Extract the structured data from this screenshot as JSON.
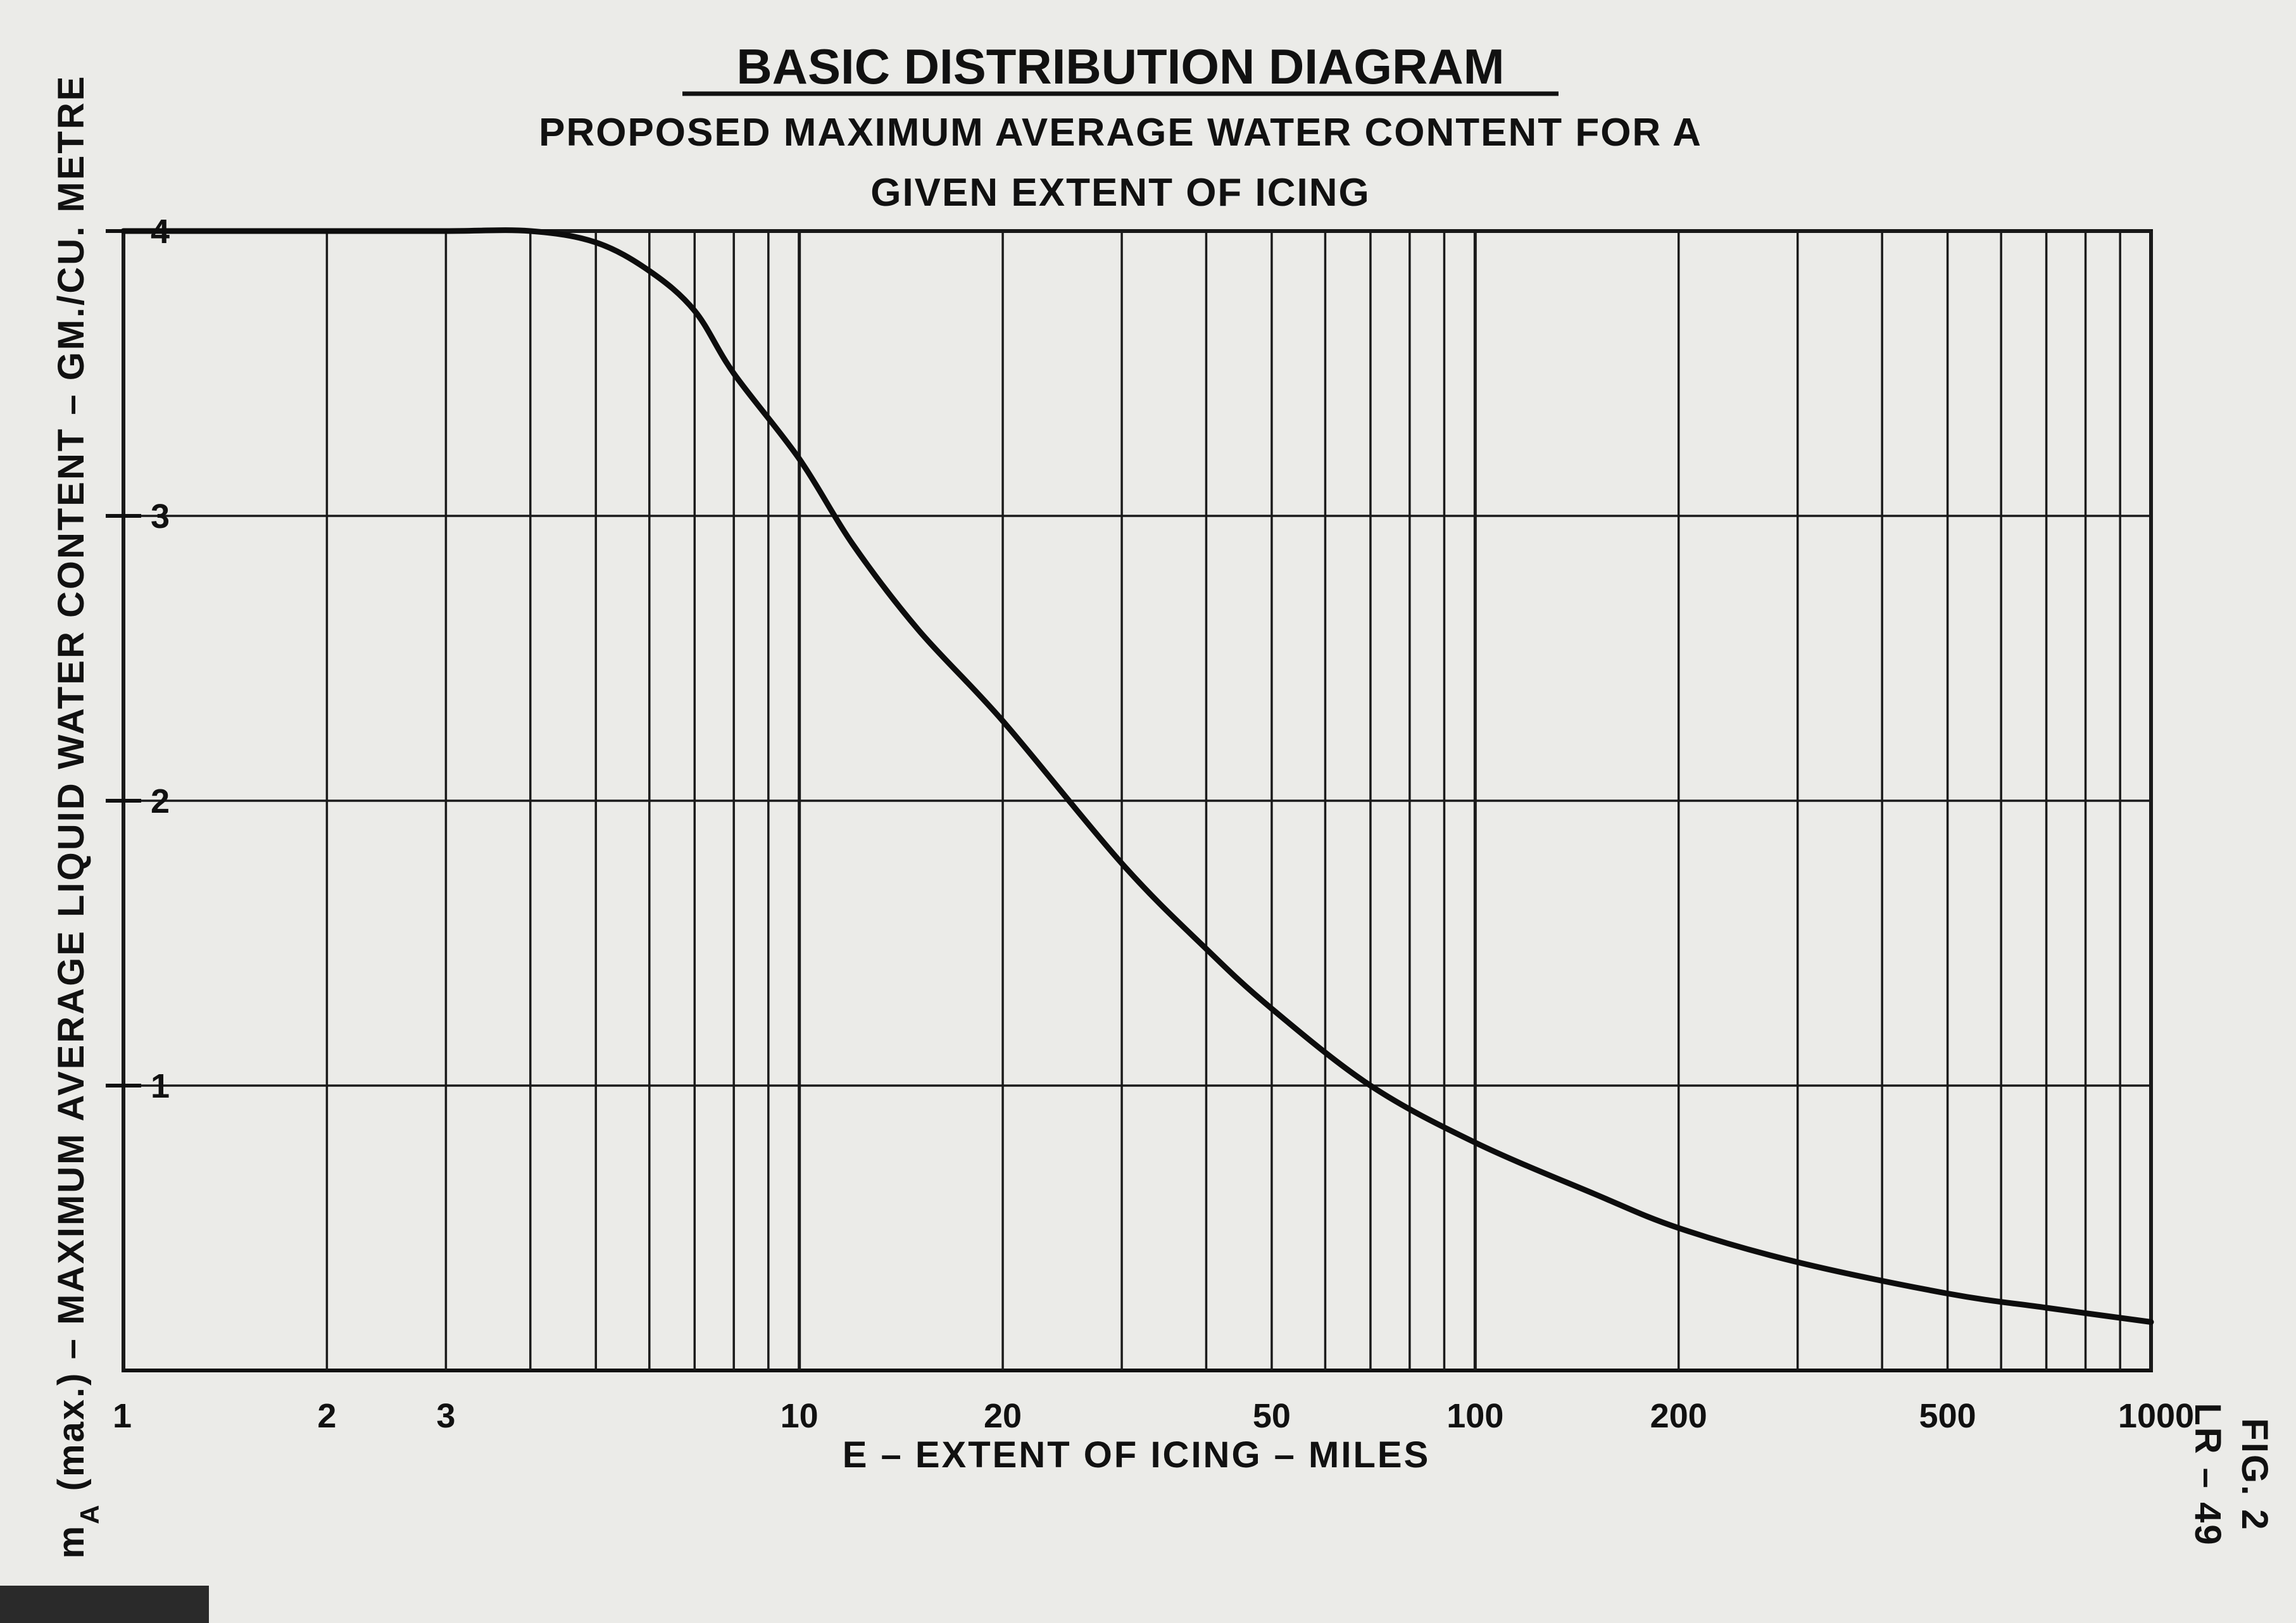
{
  "chart_data": {
    "type": "line",
    "title": "BASIC DISTRIBUTION DIAGRAM",
    "subtitle_lines": [
      "PROPOSED  MAXIMUM  AVERAGE  WATER  CONTENT  FOR  A",
      "GIVEN  EXTENT  OF  ICING"
    ],
    "xlabel": "E – EXTENT  OF  ICING – MILES",
    "ylabel": "m (max.) – MAXIMUM  AVERAGE  LIQUID  WATER  CONTENT  –  GM./CU. METRE",
    "ylabel_subscript": "A",
    "x_scale": "log",
    "xlim": [
      1,
      1000
    ],
    "ylim": [
      0,
      4
    ],
    "grid": true,
    "x_tick_labels": [
      "1",
      "2",
      "3",
      "10",
      "20",
      "50",
      "100",
      "200",
      "500",
      "1000"
    ],
    "y_tick_labels": [
      "1",
      "2",
      "3",
      "4"
    ],
    "x_gridlines": [
      1,
      2,
      3,
      4,
      5,
      6,
      7,
      8,
      9,
      10,
      20,
      30,
      40,
      50,
      60,
      70,
      80,
      90,
      100,
      200,
      300,
      400,
      500,
      600,
      700,
      800,
      900,
      1000
    ],
    "y_gridlines": [
      1,
      2,
      3,
      4
    ],
    "series": [
      {
        "x": [
          1,
          2,
          3,
          4,
          5,
          6,
          7,
          8,
          10,
          12,
          15,
          20,
          30,
          40,
          50,
          70,
          100,
          150,
          200,
          300,
          500,
          700,
          1000
        ],
        "y": [
          4.0,
          4.0,
          4.0,
          4.0,
          3.96,
          3.86,
          3.72,
          3.5,
          3.2,
          2.9,
          2.6,
          2.28,
          1.78,
          1.48,
          1.27,
          1.0,
          0.8,
          0.62,
          0.5,
          0.38,
          0.27,
          0.22,
          0.17
        ],
        "color": "#0d0d0d"
      }
    ]
  },
  "figure_label": [
    "FIG. 2",
    "LR – 49"
  ],
  "colors": {
    "paper": "#ebebe8",
    "ink": "#111111",
    "grid": "#1a1a1a"
  }
}
